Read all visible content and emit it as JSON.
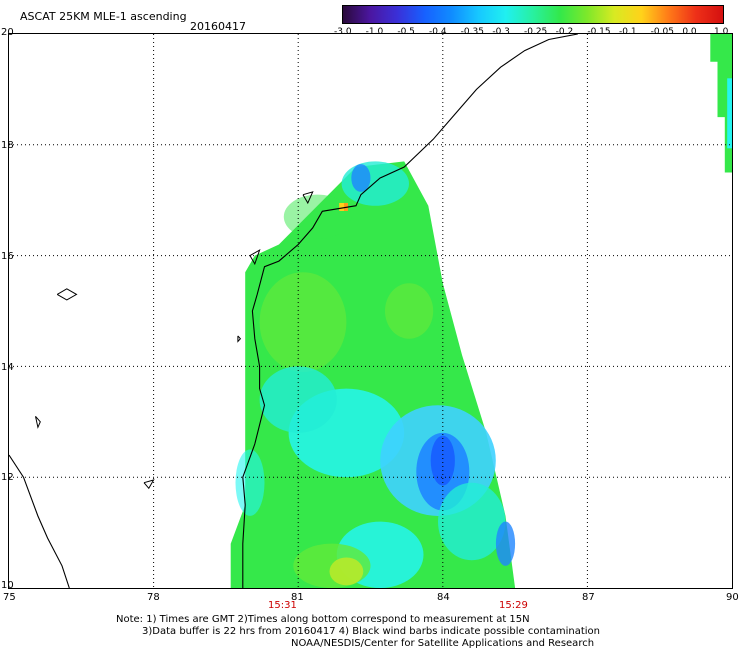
{
  "header": {
    "title": "ASCAT 25KM MLE-1 ascending",
    "date": "20160417"
  },
  "colorbar": {
    "ticks": [
      "-3.0",
      "-1.0",
      "-0.5",
      "-0.4",
      "-0.35",
      "-0.3",
      "-0.25",
      "-0.2",
      "-0.15",
      "-0.1",
      "-0.05",
      "0.0",
      "1.0"
    ],
    "colors": [
      "#2a0a3a",
      "#4b16a0",
      "#3a30d8",
      "#1760ff",
      "#108cff",
      "#17c8ff",
      "#20f0f0",
      "#28f0a0",
      "#33e84a",
      "#7ee82a",
      "#d8ea22",
      "#ffd21a",
      "#ff7a18",
      "#ee3018",
      "#d41010"
    ]
  },
  "map": {
    "lat_labels": [
      "20",
      "18",
      "16",
      "14",
      "12",
      "10"
    ],
    "lon_labels": [
      "75",
      "78",
      "81",
      "84",
      "87",
      "90"
    ],
    "time_labels": [
      "15:31",
      "15:29"
    ],
    "palette": {
      "green": "#35e84a",
      "lime": "#62ea3a",
      "yellowgreen": "#b7ea2a",
      "cyan": "#23ecd6",
      "aqua": "#25f5f0",
      "lightblue": "#3fd2ff",
      "blue": "#1f86ff",
      "deepblue": "#1658ff",
      "yellow": "#ffd11a",
      "orange": "#ff9a1a"
    }
  },
  "notes": {
    "line1": "Note: 1) Times are GMT 2)Times along bottom correspond to measurement at 15N",
    "line2": "3)Data buffer is 22 hrs from 20160417 4) Black wind barbs indicate possible contamination",
    "line3": "NOAA/NESDIS/Center for Satellite Applications and Research"
  }
}
